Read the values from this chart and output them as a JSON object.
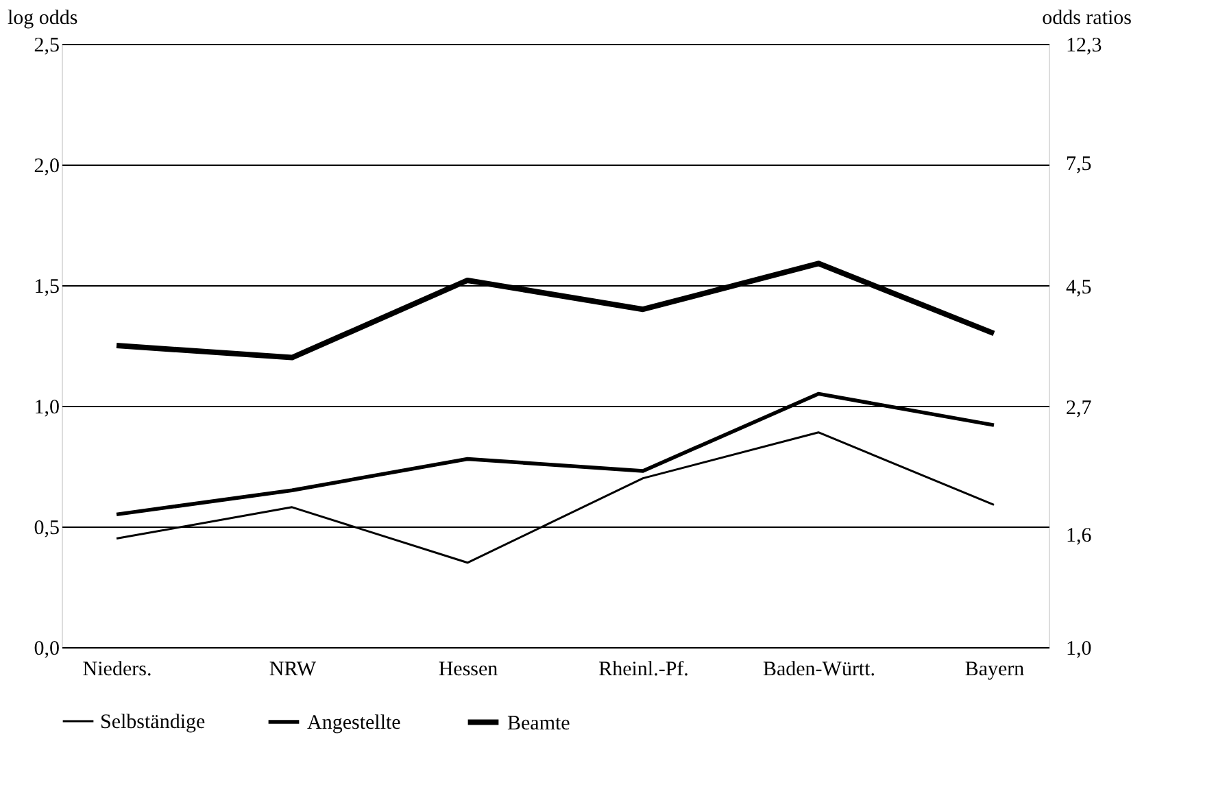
{
  "chart_data": {
    "type": "line",
    "ylabel": "log odds",
    "y2label": "odds ratios",
    "categories": [
      "Nieders.",
      "NRW",
      "Hessen",
      "Rheinl.-Pf.",
      "Baden-Württ.",
      "Bayern"
    ],
    "series": [
      {
        "name": "Selbständige",
        "color": "#000000",
        "values": [
          0.45,
          0.58,
          0.35,
          0.7,
          0.89,
          0.59
        ]
      },
      {
        "name": "Angestellte",
        "color": "#000000",
        "values": [
          0.55,
          0.65,
          0.78,
          0.73,
          1.05,
          0.92
        ]
      },
      {
        "name": "Beamte",
        "color": "#000000",
        "values": [
          1.25,
          1.2,
          1.52,
          1.4,
          1.59,
          1.3
        ]
      }
    ],
    "ylim": [
      0,
      2.5
    ],
    "yticks": [
      {
        "value": 0,
        "label": "0,0"
      },
      {
        "value": 0.5,
        "label": "0,5"
      },
      {
        "value": 1,
        "label": "1,0"
      },
      {
        "value": 1.5,
        "label": "1,5"
      },
      {
        "value": 2,
        "label": "2,0"
      },
      {
        "value": 2.5,
        "label": "2,5"
      }
    ],
    "y2lim": [
      1,
      12.3
    ],
    "y2ticks": [
      {
        "value": 1,
        "label": "1,0"
      },
      {
        "value": 1.6,
        "label": "1,6"
      },
      {
        "value": 2.72,
        "label": "2,7"
      },
      {
        "value": 4.5,
        "label": "4,5"
      },
      {
        "value": 7.5,
        "label": "7,5"
      },
      {
        "value": 12.3,
        "label": "12,3"
      }
    ],
    "log": "y2",
    "grid": "y",
    "legend": "bottom",
    "marker": "none",
    "line_style": "solid"
  }
}
